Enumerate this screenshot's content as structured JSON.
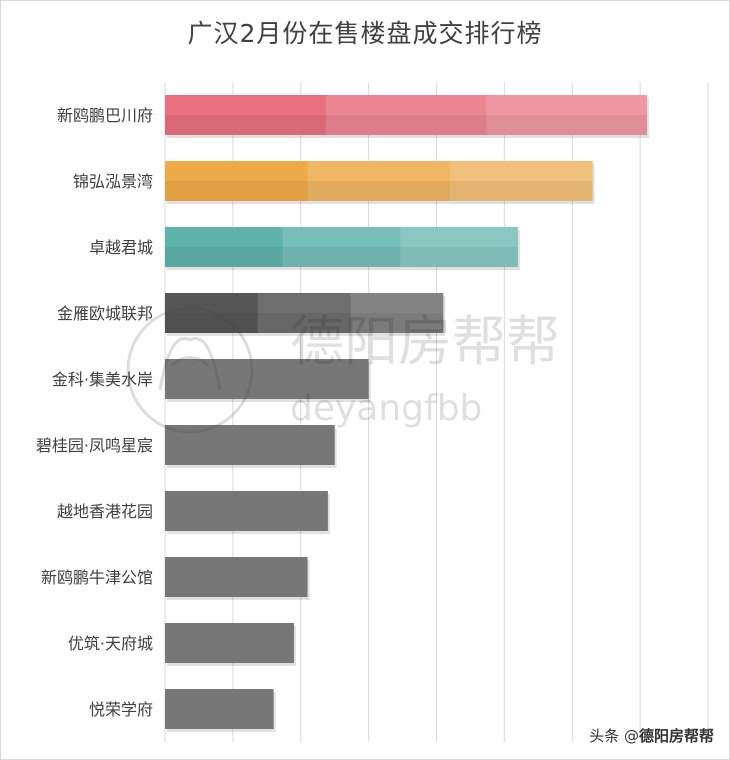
{
  "chart_data": {
    "type": "bar",
    "orientation": "horizontal",
    "title": "广汉2月份在售楼盘成交排行榜",
    "xlabel": "",
    "ylabel": "",
    "xlim": [
      0,
      160
    ],
    "grid": true,
    "categories": [
      "新鸥鹏巴川府",
      "锦弘泓景湾",
      "卓越君城",
      "金雁欧城联邦",
      "金科·集美水岸",
      "碧桂园·凤鸣星宸",
      "越地香港花园",
      "新鸥鹏牛津公馆",
      "优筑·天府城",
      "悦荣学府"
    ],
    "values": [
      142,
      126,
      104,
      82,
      60,
      50,
      48,
      42,
      38,
      32
    ],
    "colors": [
      "#e8707f",
      "#eeaa48",
      "#5eb3ac",
      "#555555",
      "#777777",
      "#777777",
      "#777777",
      "#777777",
      "#777777",
      "#777777"
    ]
  },
  "watermark": {
    "text": "德阳房帮帮",
    "subtext": "deyangfbb"
  },
  "credit": {
    "prefix": "头条 @",
    "brand": "德阳房帮帮"
  }
}
